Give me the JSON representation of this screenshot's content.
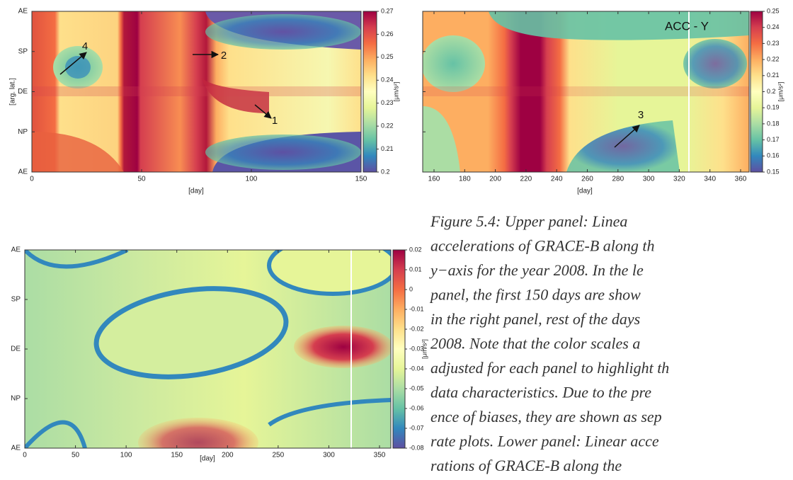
{
  "panels": [
    {
      "y_labels": [
        "AE",
        "SP",
        "DE",
        "NP",
        "AE"
      ],
      "y_label": "[arg. lat.]",
      "x_ticks": [
        "0",
        "50",
        "100",
        "150"
      ],
      "x_label": "[day]",
      "colorbar_ticks": [
        "0.27",
        "0.26",
        "0.25",
        "0.24",
        "0.23",
        "0.22",
        "0.21",
        "0.2"
      ],
      "colorbar_unit": "[μm/s²]",
      "annotations": [
        "4",
        "2",
        "1"
      ]
    },
    {
      "title": "ACC - Y",
      "x_ticks": [
        "160",
        "180",
        "200",
        "220",
        "240",
        "260",
        "280",
        "300",
        "320",
        "340",
        "360"
      ],
      "x_label": "[day]",
      "colorbar_ticks": [
        "0.25",
        "0.24",
        "0.23",
        "0.22",
        "0.21",
        "0.2",
        "0.19",
        "0.18",
        "0.17",
        "0.16",
        "0.15"
      ],
      "colorbar_unit": "[μm/s²]",
      "annotations": [
        "3"
      ]
    },
    {
      "y_labels": [
        "AE",
        "SP",
        "DE",
        "NP",
        "AE"
      ],
      "x_ticks": [
        "0",
        "50",
        "100",
        "150",
        "200",
        "250",
        "300",
        "350"
      ],
      "x_label": "[day]",
      "colorbar_ticks": [
        "0.02",
        "0.01",
        "0",
        "-0.01",
        "-0.02",
        "-0.03",
        "-0.04",
        "-0.05",
        "-0.06",
        "-0.07",
        "-0.08"
      ],
      "colorbar_unit": "[μm/s²]"
    }
  ],
  "caption": {
    "lines": [
      "Figure 5.4:  Upper panel:  Linea",
      "accelerations of GRACE-B along th",
      "y−axis for the year 2008. In the le",
      "panel, the first 150 days are show",
      "in the right panel, rest of the days",
      "2008. Note that the color scales a",
      "adjusted for each panel to highlight th",
      "data characteristics. Due to the pre",
      "ence of biases, they are shown as sep",
      "rate plots. Lower panel: Linear acce",
      "rations of GRACE-B along the"
    ]
  }
}
